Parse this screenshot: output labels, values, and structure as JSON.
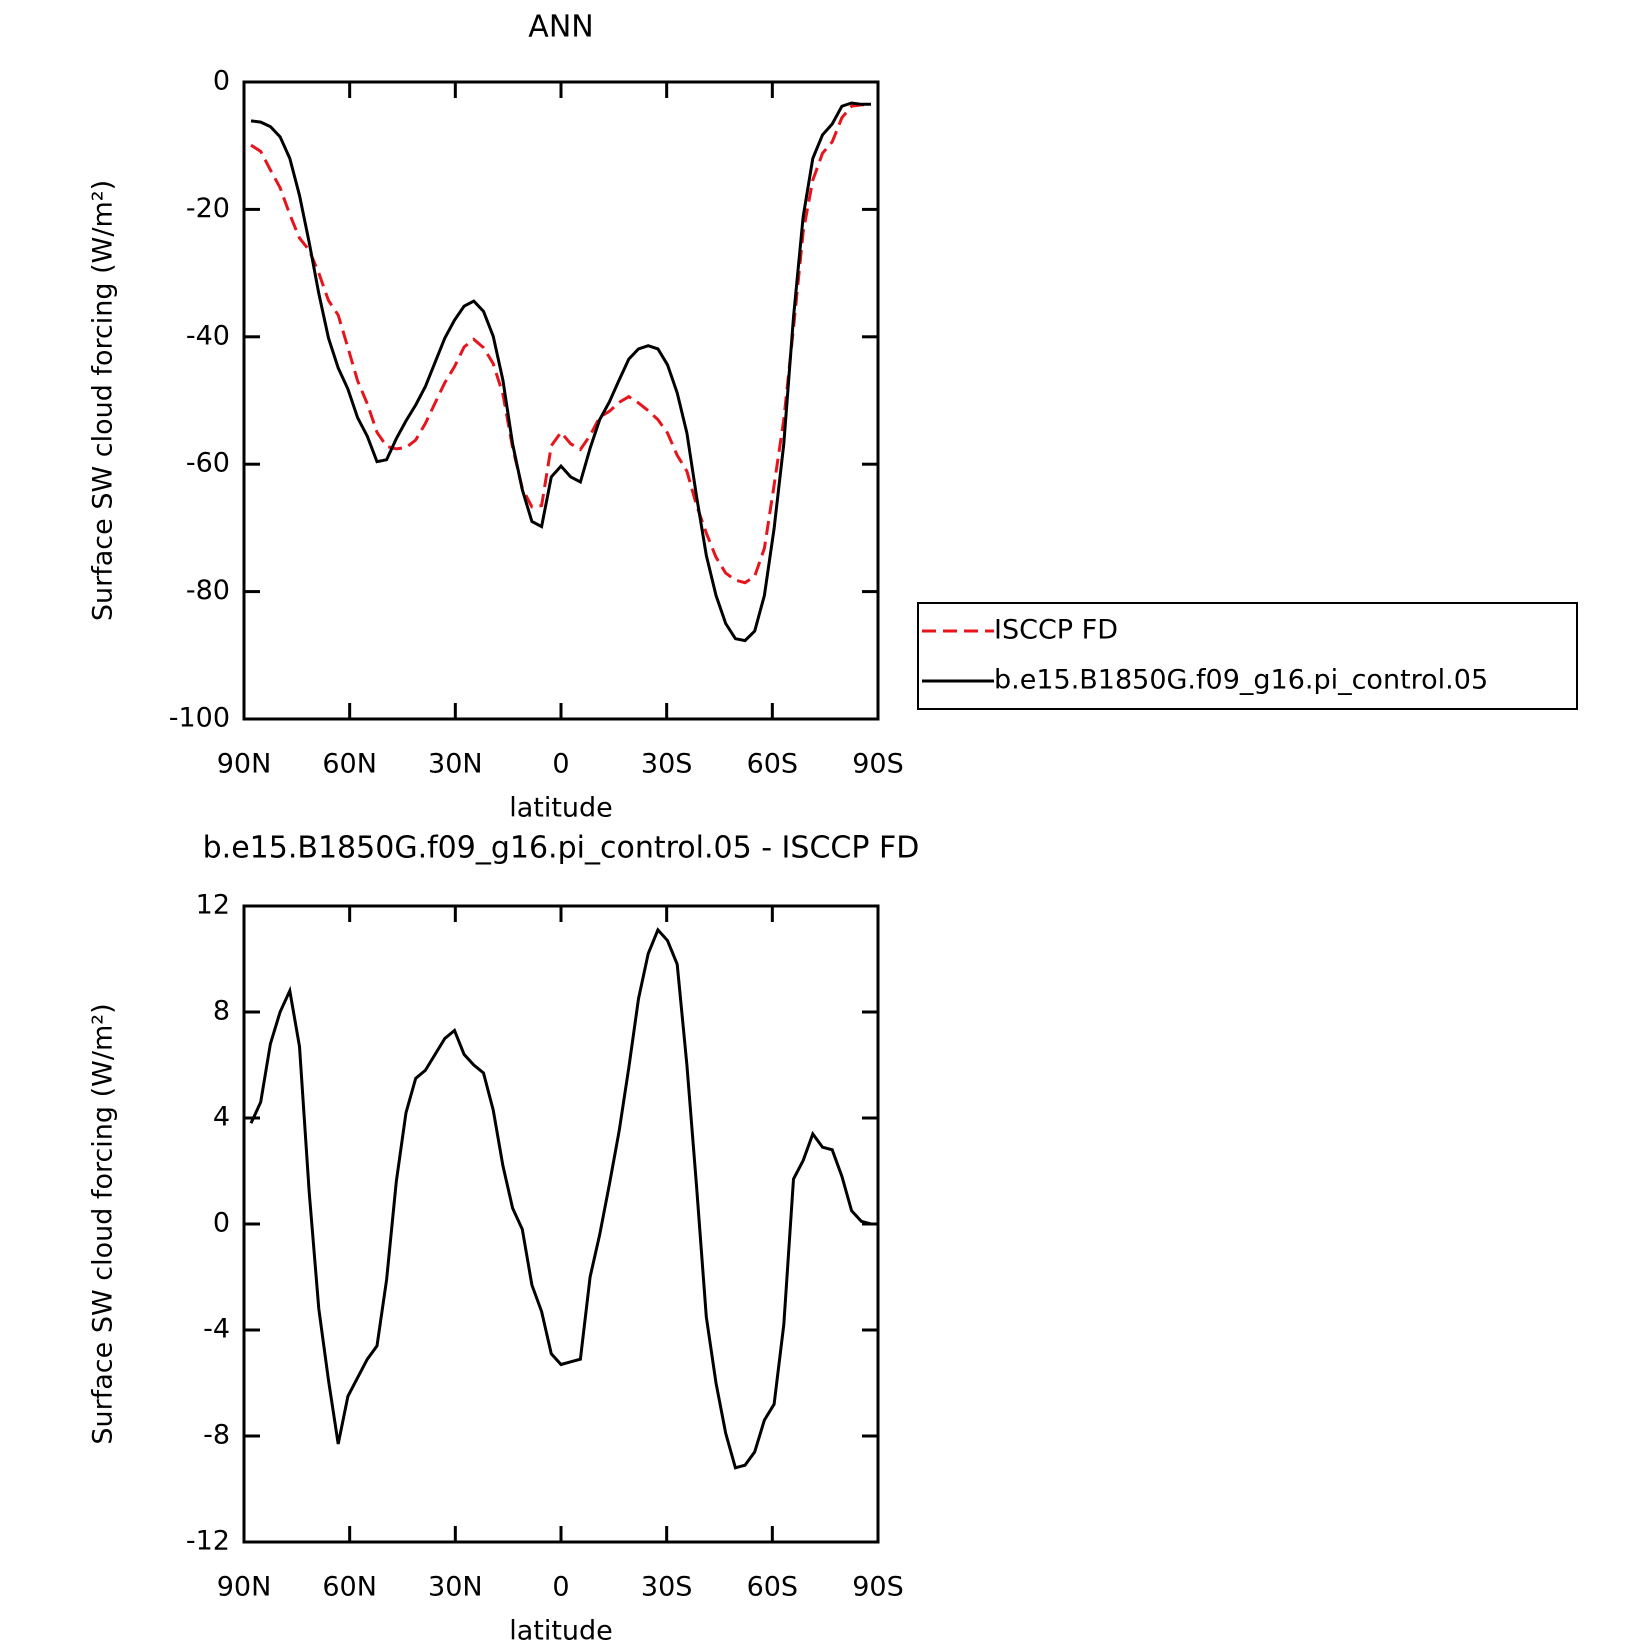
{
  "chart_data": [
    {
      "type": "line",
      "title": "ANN",
      "xlabel": "latitude",
      "ylabel": "Surface SW cloud forcing (W/m²)",
      "x": [
        88,
        85.25,
        82.5,
        79.75,
        77,
        74.25,
        71.5,
        68.75,
        66,
        63.25,
        60.5,
        57.75,
        55,
        52.25,
        49.5,
        46.75,
        44,
        41.25,
        38.5,
        35.75,
        33,
        30.25,
        27.5,
        24.75,
        22,
        19.25,
        16.5,
        13.75,
        11,
        8.25,
        5.5,
        2.75,
        0,
        -2.75,
        -5.5,
        -8.25,
        -11,
        -13.75,
        -16.5,
        -19.25,
        -22,
        -24.75,
        -27.5,
        -30.25,
        -33,
        -35.75,
        -38.5,
        -41.25,
        -44,
        -46.75,
        -49.5,
        -52.25,
        -55,
        -57.75,
        -60.5,
        -63.25,
        -66,
        -68.75,
        -71.5,
        -74.25,
        -77,
        -79.75,
        -82.5,
        -85.25,
        -88
      ],
      "series": [
        {
          "name": "ISCCP FD",
          "color": "#e8141b",
          "linestyle": "dashed",
          "values": [
            -9.9,
            -10.9,
            -13.8,
            -16.6,
            -20.8,
            -24.5,
            -26.4,
            -30.0,
            -34.3,
            -36.6,
            -41.7,
            -46.9,
            -50.5,
            -55.0,
            -57.2,
            -57.6,
            -57.4,
            -56.2,
            -53.6,
            -50.4,
            -47.2,
            -44.7,
            -41.6,
            -40.4,
            -41.7,
            -44.2,
            -49.0,
            -57.4,
            -63.8,
            -66.7,
            -66.5,
            -57.1,
            -55.0,
            -56.8,
            -57.7,
            -55.5,
            -52.6,
            -51.7,
            -50.3,
            -49.4,
            -50.4,
            -51.6,
            -53.0,
            -55.1,
            -58.6,
            -61.1,
            -66.5,
            -70.8,
            -74.6,
            -77.1,
            -78.2,
            -78.6,
            -77.6,
            -73.2,
            -63.3,
            -53.0,
            -38.6,
            -23.5,
            -15.4,
            -11.2,
            -9.4,
            -5.6,
            -3.8,
            -3.6,
            -3.5
          ]
        },
        {
          "name": "b.e15.B1850G.f09_g16.pi_control.05",
          "color": "#000000",
          "linestyle": "solid",
          "values": [
            -6.1,
            -6.3,
            -7.0,
            -8.6,
            -12,
            -17.8,
            -25.2,
            -33.2,
            -40.2,
            -44.9,
            -48.2,
            -52.7,
            -55.6,
            -59.6,
            -59.3,
            -56,
            -53.2,
            -50.7,
            -47.8,
            -44,
            -40.2,
            -37.4,
            -35.2,
            -34.4,
            -36,
            -39.9,
            -46.8,
            -56.8,
            -64,
            -69,
            -69.8,
            -62,
            -60.3,
            -62,
            -62.8,
            -57.5,
            -53,
            -50.2,
            -46.8,
            -43.5,
            -41.9,
            -41.4,
            -41.9,
            -44.4,
            -48.8,
            -55.1,
            -65.1,
            -74.3,
            -80.6,
            -85,
            -87.4,
            -87.7,
            -86.2,
            -80.6,
            -70.1,
            -56.8,
            -36.9,
            -21.1,
            -12,
            -8.3,
            -6.6,
            -3.8,
            -3.3,
            -3.5,
            -3.5
          ]
        }
      ],
      "xlim": [
        90,
        -90
      ],
      "xticks": [
        {
          "value": 90,
          "label": "90N"
        },
        {
          "value": 60,
          "label": "60N"
        },
        {
          "value": 30,
          "label": "30N"
        },
        0,
        {
          "value": -30,
          "label": "30S"
        },
        {
          "value": -60,
          "label": "60S"
        },
        {
          "value": -90,
          "label": "90S"
        }
      ],
      "ylim": [
        -100,
        0
      ],
      "yticks": [
        -100,
        -80,
        -60,
        -40,
        -20,
        0
      ],
      "legend": "right"
    },
    {
      "type": "line",
      "title": "b.e15.B1850G.f09_g16.pi_control.05 - ISCCP FD",
      "xlabel": "latitude",
      "ylabel": "Surface SW cloud forcing (W/m²)",
      "x": [
        88,
        85.25,
        82.5,
        79.75,
        77,
        74.25,
        71.5,
        68.75,
        66,
        63.25,
        60.5,
        57.75,
        55,
        52.25,
        49.5,
        46.75,
        44,
        41.25,
        38.5,
        35.75,
        33,
        30.25,
        27.5,
        24.75,
        22,
        19.25,
        16.5,
        13.75,
        11,
        8.25,
        5.5,
        2.75,
        0,
        -2.75,
        -5.5,
        -8.25,
        -11,
        -13.75,
        -16.5,
        -19.25,
        -22,
        -24.75,
        -27.5,
        -30.25,
        -33,
        -35.75,
        -38.5,
        -41.25,
        -44,
        -46.75,
        -49.5,
        -52.25,
        -55,
        -57.75,
        -60.5,
        -63.25,
        -66,
        -68.75,
        -71.5,
        -74.25,
        -77,
        -79.75,
        -82.5,
        -85.25,
        -88
      ],
      "series": [
        {
          "color": "#000000",
          "linestyle": "solid",
          "values": [
            3.8,
            4.6,
            6.8,
            8.0,
            8.8,
            6.7,
            1.2,
            -3.2,
            -5.9,
            -8.3,
            -6.5,
            -5.8,
            -5.1,
            -4.6,
            -2.1,
            1.6,
            4.2,
            5.5,
            5.8,
            6.4,
            7.0,
            7.3,
            6.4,
            6.0,
            5.7,
            4.3,
            2.2,
            0.6,
            -0.2,
            -2.3,
            -3.3,
            -4.9,
            -5.3,
            -5.2,
            -5.1,
            -2.0,
            -0.4,
            1.5,
            3.5,
            5.9,
            8.5,
            10.2,
            11.1,
            10.7,
            9.8,
            6.0,
            1.4,
            -3.5,
            -6.0,
            -7.9,
            -9.2,
            -9.1,
            -8.6,
            -7.4,
            -6.8,
            -3.8,
            1.7,
            2.4,
            3.4,
            2.9,
            2.8,
            1.8,
            0.5,
            0.1,
            0
          ]
        }
      ],
      "xlim": [
        90,
        -90
      ],
      "xticks": [
        {
          "value": 90,
          "label": "90N"
        },
        {
          "value": 60,
          "label": "60N"
        },
        {
          "value": 30,
          "label": "30N"
        },
        0,
        {
          "value": -30,
          "label": "30S"
        },
        {
          "value": -60,
          "label": "60S"
        },
        {
          "value": -90,
          "label": "90S"
        }
      ],
      "ylim": [
        -12,
        12
      ],
      "yticks": [
        -12,
        -8,
        -4,
        0,
        4,
        8,
        12
      ]
    }
  ]
}
